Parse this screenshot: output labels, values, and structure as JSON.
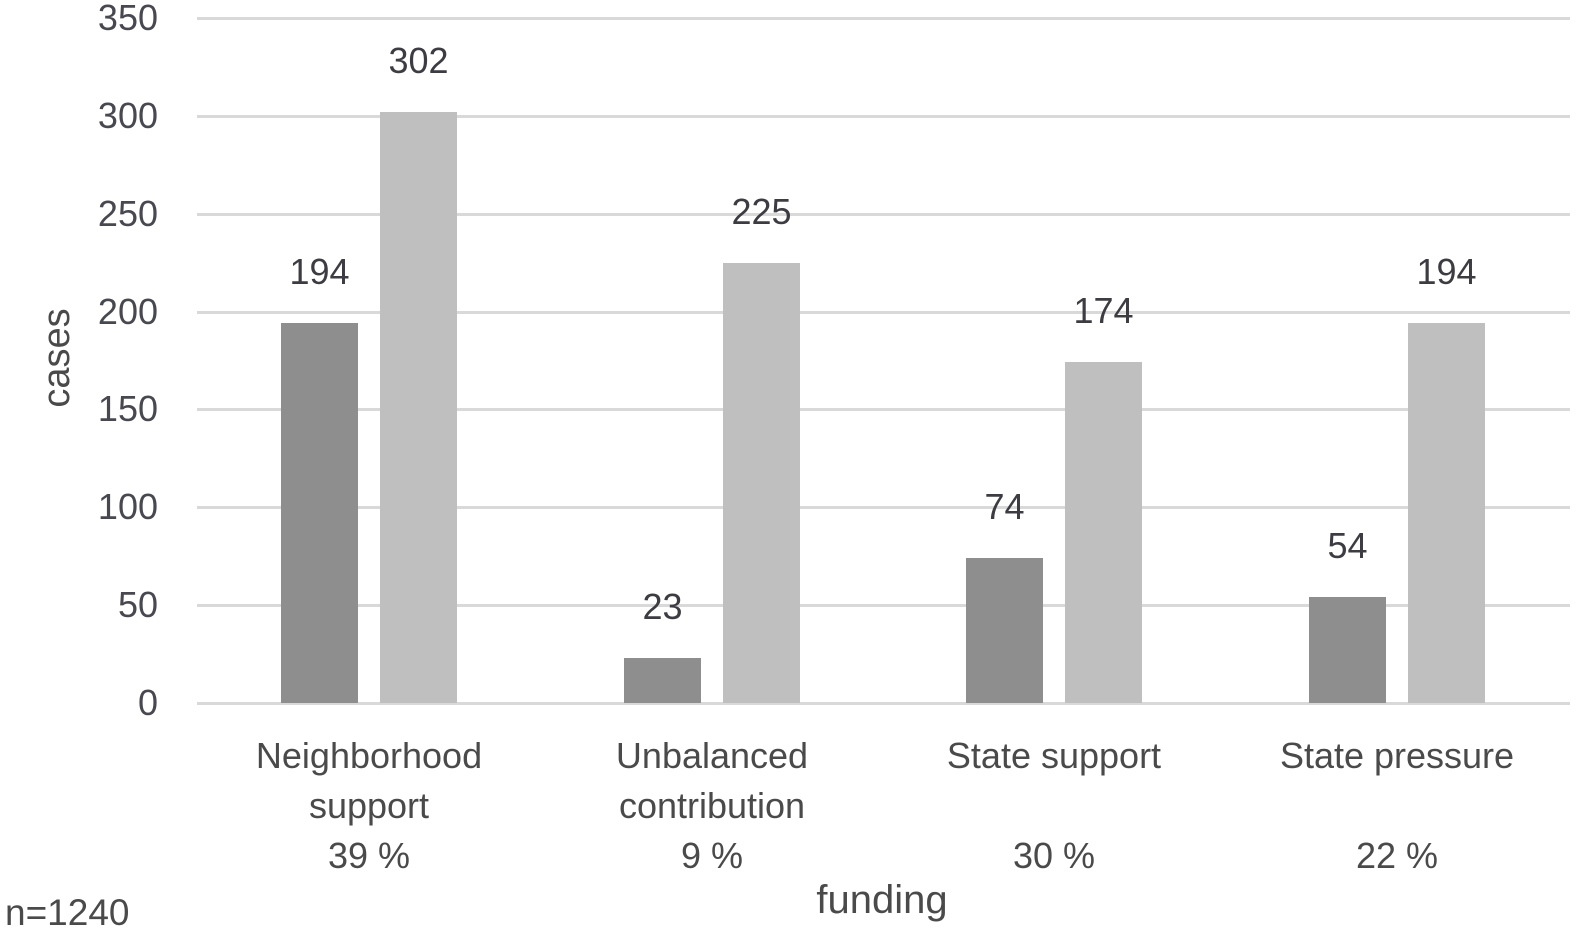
{
  "chart_data": {
    "type": "bar",
    "title": "",
    "xlabel": "funding",
    "ylabel": "cases",
    "note": "n=1240",
    "ylim": [
      0,
      350
    ],
    "yticks": [
      0,
      50,
      100,
      150,
      200,
      250,
      300,
      350
    ],
    "grid": true,
    "legend": "none",
    "categories": [
      {
        "lines": [
          "Neighborhood",
          "support"
        ],
        "percent": "39 %"
      },
      {
        "lines": [
          "Unbalanced",
          "contribution"
        ],
        "percent": "9 %"
      },
      {
        "lines": [
          "State support"
        ],
        "percent": "30 %"
      },
      {
        "lines": [
          "State pressure"
        ],
        "percent": "22 %"
      }
    ],
    "series": [
      {
        "name": "dark",
        "color": "#8e8e8e",
        "values": [
          194,
          23,
          74,
          54
        ]
      },
      {
        "name": "light",
        "color": "#bfbfbf",
        "values": [
          302,
          225,
          174,
          194
        ]
      }
    ]
  },
  "colors": {
    "gridline": "#d9d9d9",
    "text": "#4a4a4a",
    "background": "#ffffff"
  }
}
